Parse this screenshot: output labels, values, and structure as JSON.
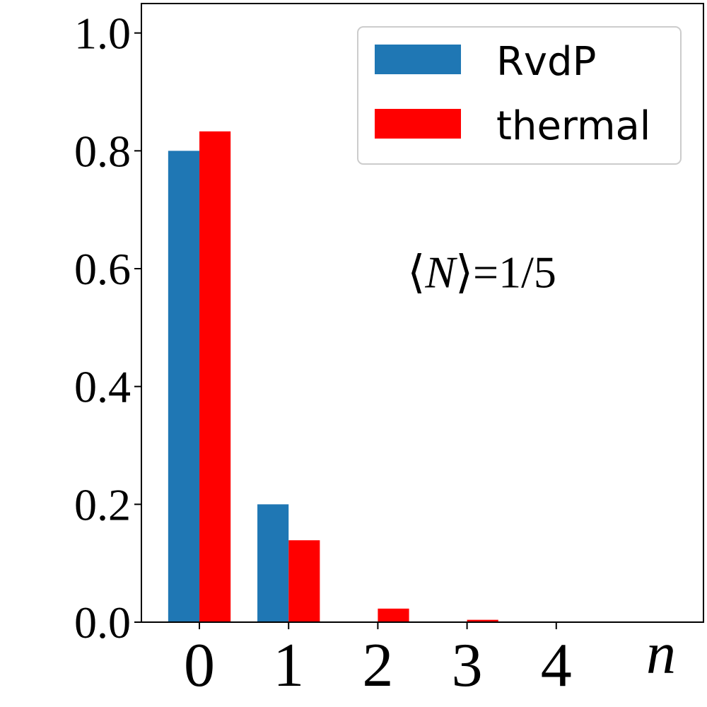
{
  "chart_data": {
    "type": "bar",
    "categories": [
      "0",
      "1",
      "2",
      "3",
      "4"
    ],
    "series": [
      {
        "name": "RvdP",
        "color": "#1f77b4",
        "values": [
          0.8,
          0.2,
          0.0,
          0.0,
          0.0
        ]
      },
      {
        "name": "thermal",
        "color": "#ff0000",
        "values": [
          0.833,
          0.139,
          0.023,
          0.004,
          0.001
        ]
      }
    ],
    "title": "",
    "xlabel": "n",
    "ylabel": "",
    "xlim": [
      -0.65,
      5.65
    ],
    "ylim": [
      0,
      1.05
    ],
    "yticks": [
      0.0,
      0.2,
      0.4,
      0.6,
      0.8,
      1.0
    ],
    "ytick_labels": [
      "0.0",
      "0.2",
      "0.4",
      "0.6",
      "0.8",
      "1.0"
    ],
    "legend_position": "top-right",
    "grid": false,
    "annotation": {
      "prefix": "⟨",
      "var": "N",
      "suffix": "⟩=1/5",
      "x": 2.65,
      "y": 0.58
    }
  }
}
